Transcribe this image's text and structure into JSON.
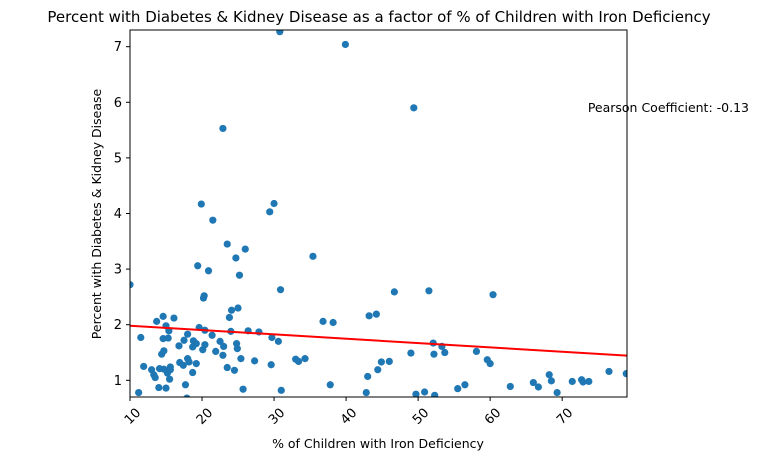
{
  "chart_data": {
    "type": "scatter",
    "title": "Percent with Diabetes & Kidney Disease as a factor of % of Children with Iron Deficiency",
    "xlabel": "% of Children with Iron Deficiency",
    "ylabel": "Percent with Diabetes & Kidney Disease",
    "xlim": [
      10,
      79
    ],
    "ylim": [
      0.7,
      7.3
    ],
    "xticks": [
      10,
      20,
      30,
      40,
      50,
      60,
      70
    ],
    "yticks": [
      1,
      2,
      3,
      4,
      5,
      6,
      7
    ],
    "xtick_rotation": 45,
    "grid": false,
    "point_color": "#1f77b4",
    "line_color": "#ff0000",
    "annotation": "Pearson Coefficient: -0.13",
    "regression": {
      "slope": -0.0078,
      "intercept": 2.06
    },
    "points": [
      [
        10.0,
        2.72
      ],
      [
        11.2,
        0.78
      ],
      [
        11.5,
        1.77
      ],
      [
        11.9,
        1.25
      ],
      [
        13.0,
        1.19
      ],
      [
        13.3,
        1.1
      ],
      [
        13.5,
        1.05
      ],
      [
        13.7,
        2.06
      ],
      [
        14.0,
        0.87
      ],
      [
        14.1,
        1.21
      ],
      [
        14.4,
        1.47
      ],
      [
        14.6,
        2.15
      ],
      [
        14.6,
        1.75
      ],
      [
        14.7,
        1.53
      ],
      [
        14.7,
        1.2
      ],
      [
        15.0,
        0.86
      ],
      [
        15.0,
        1.98
      ],
      [
        15.2,
        1.13
      ],
      [
        15.3,
        1.76
      ],
      [
        15.4,
        1.89
      ],
      [
        15.5,
        1.02
      ],
      [
        15.6,
        1.19
      ],
      [
        15.6,
        1.24
      ],
      [
        16.1,
        2.12
      ],
      [
        16.8,
        1.62
      ],
      [
        16.9,
        1.32
      ],
      [
        17.4,
        1.27
      ],
      [
        17.5,
        1.72
      ],
      [
        17.7,
        0.92
      ],
      [
        17.9,
        0.68
      ],
      [
        18.0,
        1.39
      ],
      [
        18.0,
        1.83
      ],
      [
        18.2,
        1.33
      ],
      [
        18.7,
        1.6
      ],
      [
        18.7,
        1.14
      ],
      [
        18.8,
        1.71
      ],
      [
        19.2,
        1.66
      ],
      [
        19.2,
        1.3
      ],
      [
        19.4,
        3.06
      ],
      [
        19.6,
        1.95
      ],
      [
        19.9,
        4.17
      ],
      [
        20.1,
        1.55
      ],
      [
        20.2,
        2.48
      ],
      [
        20.3,
        2.52
      ],
      [
        20.4,
        1.64
      ],
      [
        20.4,
        1.9
      ],
      [
        20.9,
        2.97
      ],
      [
        21.4,
        1.81
      ],
      [
        21.5,
        3.88
      ],
      [
        21.9,
        1.52
      ],
      [
        22.5,
        1.7
      ],
      [
        22.9,
        5.53
      ],
      [
        22.9,
        1.45
      ],
      [
        23.0,
        1.61
      ],
      [
        23.5,
        3.45
      ],
      [
        23.5,
        1.23
      ],
      [
        23.8,
        2.13
      ],
      [
        24.0,
        1.88
      ],
      [
        24.1,
        2.26
      ],
      [
        24.5,
        1.18
      ],
      [
        24.7,
        3.2
      ],
      [
        24.8,
        1.66
      ],
      [
        24.9,
        1.57
      ],
      [
        25.0,
        2.3
      ],
      [
        25.2,
        2.89
      ],
      [
        25.4,
        1.39
      ],
      [
        25.7,
        0.84
      ],
      [
        26.0,
        3.36
      ],
      [
        26.4,
        1.89
      ],
      [
        27.3,
        1.35
      ],
      [
        27.9,
        1.87
      ],
      [
        29.4,
        4.03
      ],
      [
        29.6,
        1.28
      ],
      [
        29.7,
        1.77
      ],
      [
        30.0,
        4.18
      ],
      [
        30.6,
        1.7
      ],
      [
        30.8,
        7.27
      ],
      [
        30.9,
        2.63
      ],
      [
        31.0,
        0.82
      ],
      [
        33.0,
        1.38
      ],
      [
        33.4,
        1.34
      ],
      [
        34.3,
        1.39
      ],
      [
        35.4,
        3.23
      ],
      [
        36.8,
        2.06
      ],
      [
        37.8,
        0.92
      ],
      [
        38.2,
        2.04
      ],
      [
        39.9,
        7.04
      ],
      [
        42.8,
        0.78
      ],
      [
        43.0,
        1.07
      ],
      [
        43.2,
        2.16
      ],
      [
        44.2,
        2.19
      ],
      [
        44.4,
        1.19
      ],
      [
        44.9,
        1.33
      ],
      [
        46.0,
        1.34
      ],
      [
        46.7,
        2.59
      ],
      [
        49.0,
        1.49
      ],
      [
        49.4,
        5.9
      ],
      [
        49.7,
        0.75
      ],
      [
        50.9,
        0.79
      ],
      [
        51.5,
        2.61
      ],
      [
        52.1,
        1.67
      ],
      [
        52.2,
        1.47
      ],
      [
        52.3,
        0.73
      ],
      [
        53.3,
        1.61
      ],
      [
        53.7,
        1.5
      ],
      [
        55.5,
        0.85
      ],
      [
        56.5,
        0.92
      ],
      [
        58.1,
        1.52
      ],
      [
        59.6,
        1.37
      ],
      [
        60.0,
        1.3
      ],
      [
        60.4,
        2.54
      ],
      [
        62.8,
        0.89
      ],
      [
        66.0,
        0.96
      ],
      [
        66.7,
        0.88
      ],
      [
        68.2,
        1.1
      ],
      [
        68.5,
        0.99
      ],
      [
        69.3,
        0.78
      ],
      [
        71.4,
        0.98
      ],
      [
        72.7,
        1.01
      ],
      [
        72.9,
        0.97
      ],
      [
        73.7,
        0.98
      ],
      [
        76.5,
        1.16
      ],
      [
        78.9,
        1.12
      ]
    ]
  }
}
